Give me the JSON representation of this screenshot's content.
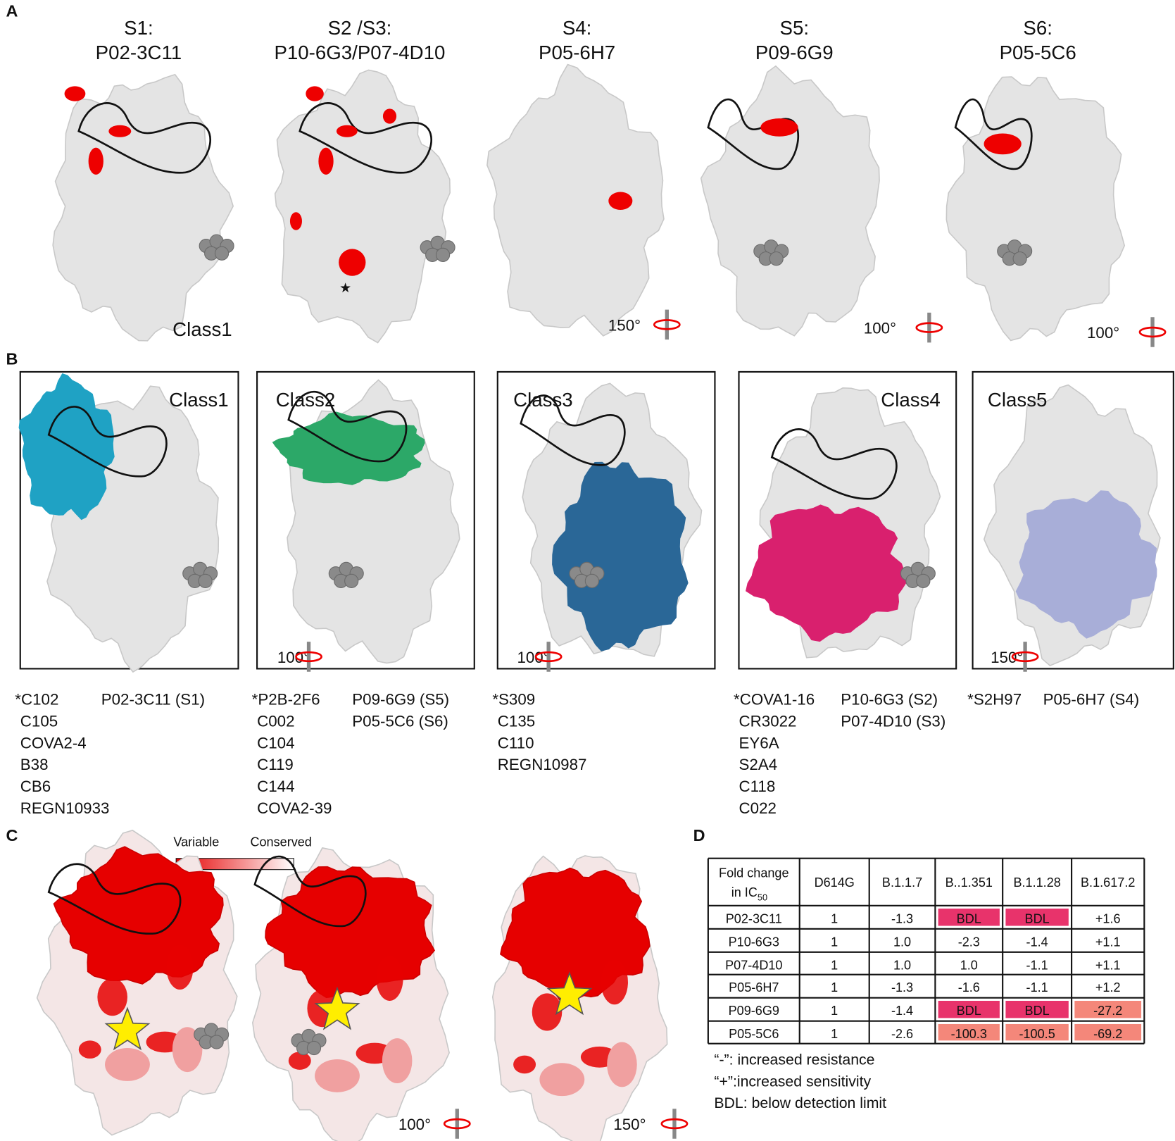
{
  "panel_labels": [
    "A",
    "B",
    "C",
    "D"
  ],
  "panel_a": {
    "structures": [
      {
        "title": [
          "S1:",
          "P02-3C11"
        ]
      },
      {
        "title": [
          "S2 /S3:",
          "P10-6G3/P07-4D10"
        ]
      },
      {
        "title": [
          "S4:",
          "P05-6H7"
        ]
      },
      {
        "title": [
          "S5:",
          "P09-6G9"
        ]
      },
      {
        "title": [
          "S6:",
          "P05-5C6"
        ]
      }
    ],
    "class_label": "Class1",
    "rotations": [
      "150°",
      "100°",
      "100°"
    ]
  },
  "panel_b": {
    "classes": [
      {
        "name": "Class1",
        "color": "#1fa2c4",
        "antibodies": [
          "*C102",
          "C105",
          "COVA2-4",
          "B38",
          "CB6",
          "REGN10933"
        ],
        "ours": [
          "P02-3C11 (S1)"
        ]
      },
      {
        "name": "Class2",
        "color": "#2ca868",
        "antibodies": [
          "*P2B-2F6",
          "C002",
          "C104",
          "C119",
          "C144",
          "COVA2-39"
        ],
        "ours": [
          "P09-6G9 (S5)",
          "P05-5C6 (S6)"
        ]
      },
      {
        "name": "Class3",
        "color": "#2a6797",
        "antibodies": [
          "*S309",
          "C135",
          "C110",
          "REGN10987"
        ],
        "ours": []
      },
      {
        "name": "Class4",
        "color": "#d9206e",
        "antibodies": [
          "*COVA1-16",
          "CR3022",
          "EY6A",
          "S2A4",
          "C118",
          "C022"
        ],
        "ours": [
          "P10-6G3 (S2)",
          "P07-4D10 (S3)"
        ]
      },
      {
        "name": "Class5",
        "color": "#a8aed8",
        "antibodies": [
          "*S2H97"
        ],
        "ours": [
          "P05-6H7 (S4)"
        ]
      }
    ],
    "rotations": [
      "100°",
      "100°",
      "150°"
    ]
  },
  "panel_c": {
    "legend": [
      "Variable",
      "Conserved"
    ],
    "rotations": [
      "100°",
      "150°"
    ]
  },
  "panel_d": {
    "header": [
      [
        "Fold change",
        "in IC",
        "50"
      ],
      [
        "D614G"
      ],
      [
        "B.1.1.7"
      ],
      [
        "B..1.351"
      ],
      [
        "B.1.1.28"
      ],
      [
        "B.1.617.2"
      ]
    ],
    "rows": [
      [
        "P02-3C11",
        "1",
        "-1.3",
        "BDL",
        "BDL",
        "+1.6"
      ],
      [
        "P10-6G3",
        "1",
        "1.0",
        "-2.3",
        "-1.4",
        "+1.1"
      ],
      [
        "P07-4D10",
        "1",
        "1.0",
        "1.0",
        "-1.1",
        "+1.1"
      ],
      [
        "P05-6H7",
        "1",
        "-1.3",
        "-1.6",
        "-1.1",
        "+1.2"
      ],
      [
        "P09-6G9",
        "1",
        "-1.4",
        "BDL",
        "BDL",
        "-27.2"
      ],
      [
        "P05-5C6",
        "1",
        "-2.6",
        "-100.3",
        "-100.5",
        "-69.2"
      ]
    ],
    "cell_fills": [
      [
        null,
        null,
        null,
        "#e8336b",
        "#e8336b",
        null
      ],
      [
        null,
        null,
        null,
        null,
        null,
        null
      ],
      [
        null,
        null,
        null,
        null,
        null,
        null
      ],
      [
        null,
        null,
        null,
        null,
        null,
        null
      ],
      [
        null,
        null,
        null,
        "#e8336b",
        "#e8336b",
        "#f4877a"
      ],
      [
        null,
        null,
        null,
        "#f4877a",
        "#f4877a",
        "#f4877a"
      ]
    ],
    "notes": [
      "“-”:  increased resistance",
      "“+”:increased sensitivity",
      "BDL: below detection limit"
    ]
  }
}
